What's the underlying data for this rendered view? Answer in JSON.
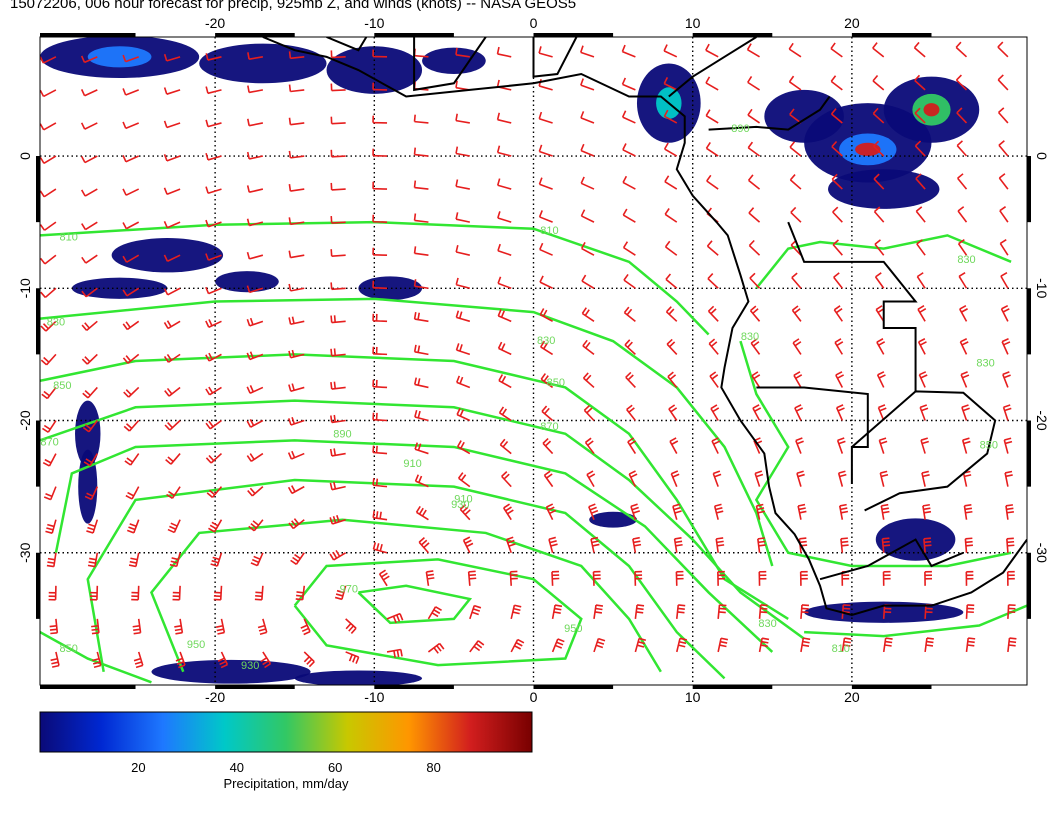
{
  "title": "15072206, 006 hour forecast for precip, 925mb Z, and winds (knots) -- NASA GEOS5",
  "map": {
    "lon_range": [
      -31,
      31
    ],
    "lat_range": [
      -40,
      9
    ],
    "lon_ticks": [
      "-20",
      "-10",
      "0",
      "10",
      "20"
    ],
    "lat_ticks": [
      "0",
      "-10",
      "-20",
      "-30"
    ],
    "lon_tick_values": [
      -20,
      -10,
      0,
      10,
      20
    ],
    "lat_tick_values": [
      0,
      -10,
      -20,
      -30
    ],
    "contour_color": "#32e632",
    "barb_color": "#e61e1e",
    "coast_color": "#000000",
    "contour_labels": [
      {
        "text": "810",
        "lon": -29.2,
        "lat": -6.4
      },
      {
        "text": "830",
        "lon": -30.0,
        "lat": -12.8
      },
      {
        "text": "850",
        "lon": -29.6,
        "lat": -17.6
      },
      {
        "text": "870",
        "lon": -30.4,
        "lat": -21.9
      },
      {
        "text": "890",
        "lon": -12.0,
        "lat": -21.3
      },
      {
        "text": "910",
        "lon": -7.6,
        "lat": -23.5
      },
      {
        "text": "930",
        "lon": -4.6,
        "lat": -26.6
      },
      {
        "text": "970",
        "lon": -11.6,
        "lat": -33.0
      },
      {
        "text": "950",
        "lon": 2.5,
        "lat": -36.0
      },
      {
        "text": "830",
        "lon": 14.7,
        "lat": -35.6
      },
      {
        "text": "810",
        "lon": 19.3,
        "lat": -37.5
      },
      {
        "text": "950",
        "lon": -21.2,
        "lat": -37.2
      },
      {
        "text": "930",
        "lon": -17.8,
        "lat": -38.8
      },
      {
        "text": "850",
        "lon": -29.2,
        "lat": -37.5
      },
      {
        "text": "810",
        "lon": 1.0,
        "lat": -5.9
      },
      {
        "text": "830",
        "lon": 0.8,
        "lat": -14.2
      },
      {
        "text": "850",
        "lon": 1.4,
        "lat": -17.4
      },
      {
        "text": "870",
        "lon": 1.0,
        "lat": -20.7
      },
      {
        "text": "910",
        "lon": -4.4,
        "lat": -26.2
      },
      {
        "text": "830",
        "lon": 13.6,
        "lat": -13.9
      },
      {
        "text": "830",
        "lon": 28.4,
        "lat": -15.9
      },
      {
        "text": "850",
        "lon": 28.6,
        "lat": -22.1
      },
      {
        "text": "830",
        "lon": 27.2,
        "lat": -8.1
      },
      {
        "text": "890",
        "lon": 13.0,
        "lat": 1.8
      }
    ]
  },
  "colorbar": {
    "ticks": [
      "20",
      "40",
      "60",
      "80"
    ],
    "tick_values": [
      20,
      40,
      60,
      80
    ],
    "range": [
      0,
      100
    ],
    "label": "Precipitation, mm/day",
    "colors": [
      "#0a0a78",
      "#0028d2",
      "#1e78ff",
      "#00c8c8",
      "#32c864",
      "#c8c800",
      "#ff9600",
      "#d21e1e",
      "#780000"
    ]
  }
}
